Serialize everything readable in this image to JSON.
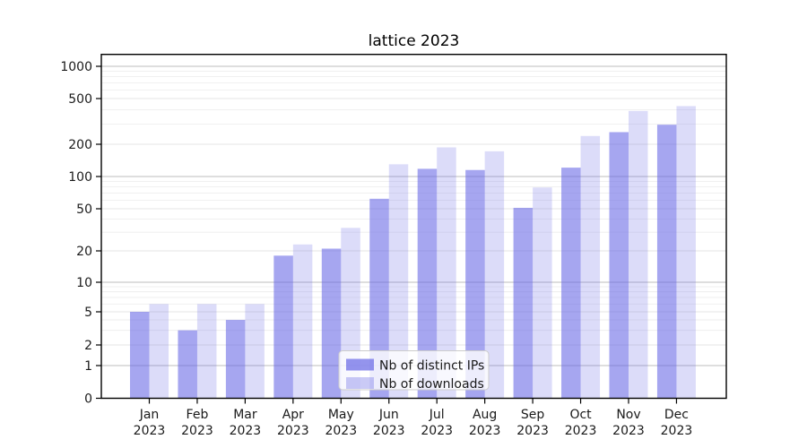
{
  "title": "lattice 2023",
  "chart_data": {
    "type": "bar",
    "title": "lattice 2023",
    "categories": [
      "Jan 2023",
      "Feb 2023",
      "Mar 2023",
      "Apr 2023",
      "May 2023",
      "Jun 2023",
      "Jul 2023",
      "Aug 2023",
      "Sep 2023",
      "Oct 2023",
      "Nov 2023",
      "Dec 2023"
    ],
    "series": [
      {
        "name": "Nb of distinct IPs",
        "values": [
          5,
          3,
          4,
          18,
          21,
          62,
          118,
          115,
          51,
          121,
          255,
          296
        ],
        "color": "#6666e6",
        "opacity": 0.58,
        "legend_swatch": "#a8a8f0"
      },
      {
        "name": "Nb of downloads",
        "values": [
          6,
          6,
          6,
          23,
          33,
          130,
          187,
          172,
          79,
          236,
          390,
          430
        ],
        "color": "#6666e6",
        "opacity": 0.23,
        "legend_swatch": "#dcdcf8"
      }
    ],
    "yscale": "symlog",
    "y_ticks": [
      0,
      1,
      2,
      5,
      10,
      20,
      50,
      100,
      200,
      500,
      1000
    ],
    "y_minor_ticks": [
      3,
      4,
      6,
      7,
      8,
      9,
      30,
      40,
      60,
      70,
      80,
      90,
      300,
      400,
      600,
      700,
      800,
      900
    ],
    "ylim": [
      0,
      1300
    ],
    "xlabel": "",
    "ylabel": "",
    "grid": true,
    "legend_position": "lower center"
  },
  "colors": {
    "grid_major": "#bdbdbd",
    "grid_mid": "#e4e4e4",
    "grid_minor": "#eeeeee",
    "axis": "#000000",
    "text": "#1a1a1a",
    "legend_border": "#cccccc",
    "legend_bg_opacity": 0.8
  }
}
